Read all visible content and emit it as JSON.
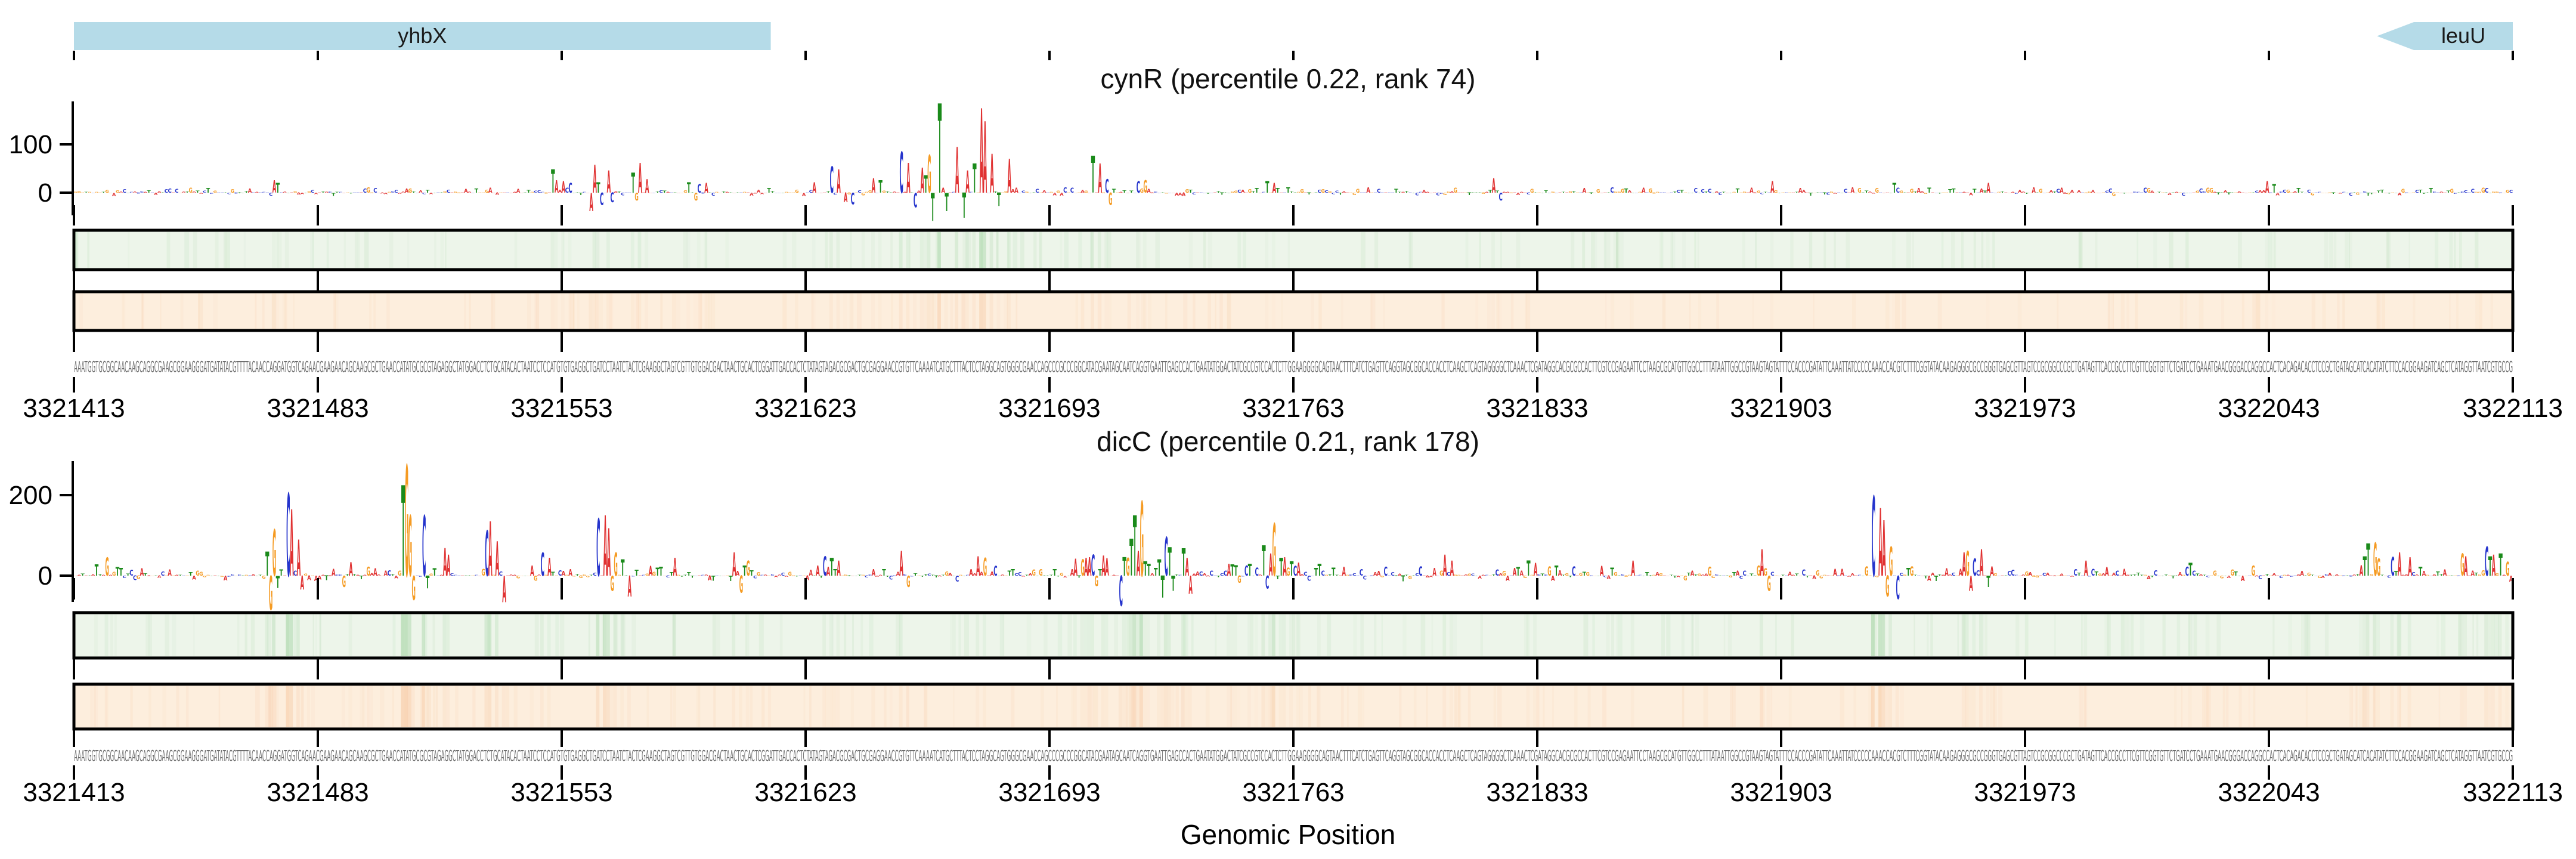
{
  "figure": {
    "xlabel": "Genomic Position",
    "colors": {
      "A": "#e03131",
      "C": "#2433cc",
      "G": "#f59b23",
      "T": "#1a8a1a",
      "gene_fill": "#b5dbe8",
      "band_green": "#edf5ea",
      "band_orange": "#fdeedd",
      "band_border": "#000000",
      "green_stripe": "#8cc98c",
      "orange_stripe": "#f3b98a",
      "sequence_gray": "#6e6e6e",
      "axis_black": "#000000"
    }
  },
  "chart_data": {
    "type": "attribution-logo-tracks",
    "xlabel": "Genomic Position",
    "axis": {
      "x_start_bp": 3321413,
      "x_end_bp": 3322113,
      "tick_interval_bp": 70,
      "tick_labels": [
        "3321413",
        "3321483",
        "3321553",
        "3321623",
        "3321693",
        "3321763",
        "3321833",
        "3321903",
        "3321973",
        "3322043",
        "3322113"
      ]
    },
    "gene_track": {
      "genes": [
        {
          "name": "yhbX",
          "start_bp": 3321413,
          "end_bp": 3321613,
          "shape": "rect"
        },
        {
          "name": "leuU",
          "start_bp": 3322074,
          "end_bp": 3322113,
          "shape": "arrow-left"
        }
      ]
    },
    "sequence": {
      "visible_prefix": "AAATGGTGCGGCAACAAGCAGGCGAAGCGGAAGGGATGATATACGTTTTACAACCAGGATGGTCAGAACGAAGAACAGCAAGCGCTGAACCATATGCGC",
      "length_bp": 700
    },
    "tracks": [
      {
        "id": "cynR",
        "title": "cynR (percentile 0.22, rank 74)",
        "yticks": [
          {
            "label": "100",
            "value": 100
          },
          {
            "label": "0",
            "value": 0
          }
        ],
        "ylim": [
          -64,
          189
        ],
        "noise_amp": 11,
        "seed": 11,
        "peaks": [
          [
            3321470,
            "A",
            26
          ],
          [
            3321471,
            "T",
            20
          ],
          [
            3321550,
            "T",
            48
          ],
          [
            3321551,
            "A",
            26
          ],
          [
            3321553,
            "A",
            24
          ],
          [
            3321555,
            "C",
            20
          ],
          [
            3321561,
            "A",
            -38
          ],
          [
            3321562,
            "A",
            58
          ],
          [
            3321563,
            "T",
            22
          ],
          [
            3321564,
            "C",
            -26
          ],
          [
            3321566,
            "A",
            46
          ],
          [
            3321567,
            "C",
            -20
          ],
          [
            3321573,
            "T",
            42
          ],
          [
            3321574,
            "G",
            -16
          ],
          [
            3321575,
            "A",
            62
          ],
          [
            3321577,
            "A",
            28
          ],
          [
            3321589,
            "T",
            22
          ],
          [
            3321591,
            "G",
            -16
          ],
          [
            3321592,
            "C",
            18
          ],
          [
            3321594,
            "A",
            20
          ],
          [
            3321625,
            "A",
            22
          ],
          [
            3321630,
            "C",
            55
          ],
          [
            3321632,
            "A",
            48
          ],
          [
            3321634,
            "A",
            -20
          ],
          [
            3321636,
            "C",
            -24
          ],
          [
            3321642,
            "A",
            30
          ],
          [
            3321644,
            "T",
            26
          ],
          [
            3321650,
            "C",
            85
          ],
          [
            3321652,
            "A",
            62
          ],
          [
            3321654,
            "C",
            -30
          ],
          [
            3321656,
            "A",
            52
          ],
          [
            3321657,
            "T",
            36
          ],
          [
            3321658,
            "G",
            78
          ],
          [
            3321659,
            "T",
            -58
          ],
          [
            3321661,
            "T",
            185
          ],
          [
            3321663,
            "T",
            -38
          ],
          [
            3321666,
            "A",
            95
          ],
          [
            3321668,
            "T",
            -52
          ],
          [
            3321669,
            "A",
            46
          ],
          [
            3321671,
            "T",
            60
          ],
          [
            3321673,
            "A",
            175
          ],
          [
            3321674,
            "A",
            148
          ],
          [
            3321676,
            "A",
            80
          ],
          [
            3321678,
            "T",
            -28
          ],
          [
            3321681,
            "A",
            70
          ],
          [
            3321705,
            "T",
            76
          ],
          [
            3321707,
            "A",
            60
          ],
          [
            3321709,
            "C",
            28
          ],
          [
            3321710,
            "G",
            -26
          ],
          [
            3321718,
            "C",
            24
          ],
          [
            3321720,
            "G",
            26
          ],
          [
            3321755,
            "T",
            24
          ],
          [
            3321757,
            "A",
            20
          ],
          [
            3321820,
            "A",
            30
          ],
          [
            3321822,
            "C",
            -16
          ],
          [
            3321900,
            "A",
            24
          ],
          [
            3321935,
            "T",
            20
          ],
          [
            3321962,
            "A",
            20
          ],
          [
            3322042,
            "A",
            24
          ],
          [
            3322044,
            "T",
            18
          ]
        ]
      },
      {
        "id": "dicC",
        "title": "dicC (percentile 0.21, rank 178)",
        "yticks": [
          {
            "label": "200",
            "value": 200
          },
          {
            "label": "0",
            "value": 0
          }
        ],
        "ylim": [
          -67,
          284
        ],
        "noise_amp": 24,
        "seed": 23,
        "peaks": [
          [
            3321419,
            "T",
            28
          ],
          [
            3321422,
            "G",
            45
          ],
          [
            3321468,
            "T",
            60
          ],
          [
            3321469,
            "G",
            -85
          ],
          [
            3321470,
            "G",
            115
          ],
          [
            3321471,
            "T",
            -30
          ],
          [
            3321474,
            "C",
            205
          ],
          [
            3321475,
            "A",
            165
          ],
          [
            3321477,
            "A",
            90
          ],
          [
            3321478,
            "A",
            -35
          ],
          [
            3321490,
            "G",
            -28
          ],
          [
            3321492,
            "A",
            34
          ],
          [
            3321507,
            "T",
            225
          ],
          [
            3321508,
            "G",
            275
          ],
          [
            3321509,
            "G",
            150
          ],
          [
            3321510,
            "G",
            -60
          ],
          [
            3321513,
            "C",
            150
          ],
          [
            3321514,
            "T",
            -32
          ],
          [
            3321519,
            "A",
            68
          ],
          [
            3321520,
            "A",
            52
          ],
          [
            3321531,
            "C",
            112
          ],
          [
            3321532,
            "A",
            135
          ],
          [
            3321534,
            "A",
            86
          ],
          [
            3321536,
            "A",
            -66
          ],
          [
            3321547,
            "C",
            58
          ],
          [
            3321549,
            "A",
            44
          ],
          [
            3321563,
            "C",
            142
          ],
          [
            3321565,
            "A",
            150
          ],
          [
            3321566,
            "A",
            118
          ],
          [
            3321567,
            "G",
            -38
          ],
          [
            3321568,
            "G",
            58
          ],
          [
            3321570,
            "T",
            40
          ],
          [
            3321572,
            "A",
            -52
          ],
          [
            3321585,
            "A",
            44
          ],
          [
            3321602,
            "A",
            58
          ],
          [
            3321604,
            "G",
            -42
          ],
          [
            3321606,
            "G",
            38
          ],
          [
            3321628,
            "C",
            48
          ],
          [
            3321630,
            "T",
            44
          ],
          [
            3321632,
            "A",
            38
          ],
          [
            3321650,
            "A",
            62
          ],
          [
            3321652,
            "G",
            -28
          ],
          [
            3321672,
            "A",
            48
          ],
          [
            3321674,
            "G",
            44
          ],
          [
            3321700,
            "A",
            42
          ],
          [
            3321702,
            "G",
            40
          ],
          [
            3321703,
            "A",
            44
          ],
          [
            3321704,
            "A",
            46
          ],
          [
            3321705,
            "C",
            52
          ],
          [
            3321706,
            "G",
            -26
          ],
          [
            3321708,
            "A",
            50
          ],
          [
            3321709,
            "A",
            43
          ],
          [
            3321713,
            "C",
            -75
          ],
          [
            3321714,
            "T",
            46
          ],
          [
            3321715,
            "G",
            44
          ],
          [
            3321716,
            "T",
            92
          ],
          [
            3321717,
            "T",
            150
          ],
          [
            3321718,
            "A",
            62
          ],
          [
            3321719,
            "G",
            185
          ],
          [
            3321720,
            "T",
            36
          ],
          [
            3321721,
            "T",
            30
          ],
          [
            3321724,
            "T",
            40
          ],
          [
            3321725,
            "T",
            -55
          ],
          [
            3321726,
            "C",
            95
          ],
          [
            3321727,
            "T",
            70
          ],
          [
            3321728,
            "T",
            -38
          ],
          [
            3321731,
            "T",
            68
          ],
          [
            3321732,
            "A",
            44
          ],
          [
            3321733,
            "A",
            -45
          ],
          [
            3321744,
            "A",
            30
          ],
          [
            3321745,
            "T",
            28
          ],
          [
            3321746,
            "T",
            26
          ],
          [
            3321747,
            "G",
            -18
          ],
          [
            3321750,
            "T",
            30
          ],
          [
            3321752,
            "C",
            20
          ],
          [
            3321754,
            "T",
            75
          ],
          [
            3321755,
            "C",
            -32
          ],
          [
            3321756,
            "A",
            55
          ],
          [
            3321757,
            "G",
            130
          ],
          [
            3321759,
            "T",
            44
          ],
          [
            3321760,
            "A",
            46
          ],
          [
            3321762,
            "T",
            36
          ],
          [
            3321764,
            "A",
            33
          ],
          [
            3321770,
            "T",
            30
          ],
          [
            3321806,
            "A",
            52
          ],
          [
            3321808,
            "A",
            38
          ],
          [
            3321830,
            "T",
            38
          ],
          [
            3321832,
            "A",
            32
          ],
          [
            3321860,
            "A",
            38
          ],
          [
            3321897,
            "A",
            66
          ],
          [
            3321899,
            "G",
            -38
          ],
          [
            3321929,
            "C",
            198
          ],
          [
            3321931,
            "A",
            168
          ],
          [
            3321932,
            "A",
            138
          ],
          [
            3321933,
            "G",
            -52
          ],
          [
            3321934,
            "G",
            72
          ],
          [
            3321936,
            "C",
            -58
          ],
          [
            3321955,
            "A",
            58
          ],
          [
            3321956,
            "G",
            62
          ],
          [
            3321957,
            "A",
            -38
          ],
          [
            3321958,
            "C",
            42
          ],
          [
            3321960,
            "A",
            66
          ],
          [
            3321962,
            "T",
            -28
          ],
          [
            3321990,
            "A",
            38
          ],
          [
            3322020,
            "T",
            32
          ],
          [
            3322069,
            "A",
            26
          ],
          [
            3322070,
            "T",
            48
          ],
          [
            3322071,
            "T",
            80
          ],
          [
            3322073,
            "G",
            82
          ],
          [
            3322074,
            "G",
            42
          ],
          [
            3322078,
            "C",
            46
          ],
          [
            3322080,
            "A",
            58
          ],
          [
            3322083,
            "A",
            46
          ],
          [
            3322098,
            "G",
            55
          ],
          [
            3322099,
            "A",
            48
          ],
          [
            3322105,
            "C",
            72
          ],
          [
            3322106,
            "T",
            48
          ],
          [
            3322107,
            "A",
            52
          ],
          [
            3322109,
            "T",
            55
          ],
          [
            3322111,
            "G",
            35
          ]
        ]
      }
    ]
  }
}
